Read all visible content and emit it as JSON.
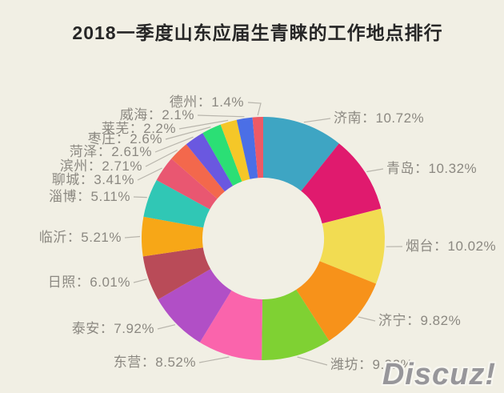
{
  "page": {
    "background": "#f1efe4"
  },
  "watermark": {
    "text": "Discuz!"
  },
  "chart_data": {
    "type": "pie",
    "subtype": "donut",
    "title": "2018一季度山东应届生青睐的工作地点排行",
    "unit": "%",
    "direction": "clockwise",
    "start_angle_deg": 0,
    "legend_position": "callout-labels",
    "slices": [
      {
        "name": "济南",
        "value": 10.72,
        "label": "济南：10.72%",
        "color": "#3ea5c3"
      },
      {
        "name": "青岛",
        "value": 10.32,
        "label": "青岛：10.32%",
        "color": "#e01a6e"
      },
      {
        "name": "烟台",
        "value": 10.02,
        "label": "烟台：10.02%",
        "color": "#f2dc52"
      },
      {
        "name": "济宁",
        "value": 9.82,
        "label": "济宁：9.82%",
        "color": "#f7921a"
      },
      {
        "name": "潍坊",
        "value": 9.32,
        "label": "潍坊：9.32%",
        "color": "#7fd133"
      },
      {
        "name": "东营",
        "value": 8.52,
        "label": "东营：8.52%",
        "color": "#fa64ac"
      },
      {
        "name": "泰安",
        "value": 7.92,
        "label": "泰安：7.92%",
        "color": "#b14fc6"
      },
      {
        "name": "日照",
        "value": 6.01,
        "label": "日照：6.01%",
        "color": "#b94b58"
      },
      {
        "name": "临沂",
        "value": 5.21,
        "label": "临沂：5.21%",
        "color": "#f7a717"
      },
      {
        "name": "淄博",
        "value": 5.11,
        "label": "淄博：5.11%",
        "color": "#30c7b5"
      },
      {
        "name": "聊城",
        "value": 3.41,
        "label": "聊城：3.41%",
        "color": "#e95771"
      },
      {
        "name": "滨州",
        "value": 2.71,
        "label": "滨州：2.71%",
        "color": "#f3684c"
      },
      {
        "name": "菏泽",
        "value": 2.61,
        "label": "菏泽：2.61%",
        "color": "#6a58e0"
      },
      {
        "name": "枣庄",
        "value": 2.6,
        "label": "枣庄：2.6%",
        "color": "#2bdf75"
      },
      {
        "name": "莱芜",
        "value": 2.2,
        "label": "莱芜：2.2%",
        "color": "#f5c728"
      },
      {
        "name": "威海",
        "value": 2.1,
        "label": "威海：2.1%",
        "color": "#4b6fe6"
      },
      {
        "name": "德州",
        "value": 1.4,
        "label": "德州：1.4%",
        "color": "#ed5a66"
      }
    ]
  }
}
